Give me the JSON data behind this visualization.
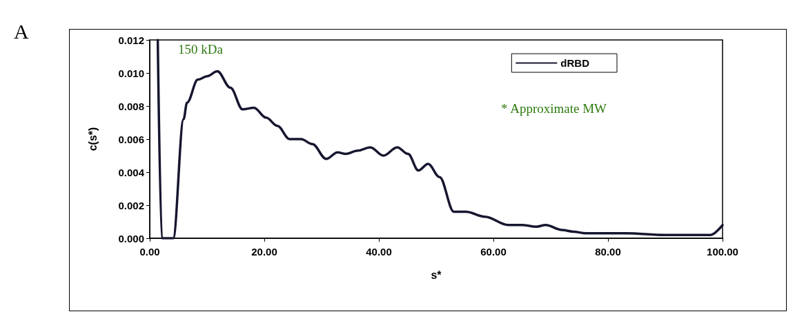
{
  "chart_data": {
    "type": "line",
    "xlabel": "s*",
    "ylabel": "c(s*)",
    "annotations": [
      "A",
      "150 kDa",
      "* Approximate MW"
    ],
    "series": [
      {
        "name": "dRBD",
        "color": "#161630",
        "x": [
          1.4,
          2.1,
          4.1,
          5.9,
          6.5,
          8.4,
          10.0,
          11.8,
          14.1,
          16.2,
          18.2,
          20.3,
          22.3,
          24.4,
          26.4,
          28.4,
          30.8,
          32.8,
          34.2,
          36.3,
          38.5,
          40.8,
          43.2,
          45.1,
          46.9,
          48.6,
          50.6,
          53.1,
          55.2,
          58.5,
          62.6,
          65.0,
          67.5,
          69.1,
          72.0,
          74.0,
          76.1,
          83.1,
          90.0,
          97.9,
          100
        ],
        "values": [
          0.012,
          0,
          0,
          0.0072,
          0.0082,
          0.0096,
          0.0098,
          0.0101,
          0.0091,
          0.0078,
          0.0079,
          0.0073,
          0.0068,
          0.006,
          0.006,
          0.0057,
          0.0048,
          0.0052,
          0.0051,
          0.0053,
          0.0055,
          0.005,
          0.0055,
          0.0051,
          0.0041,
          0.0045,
          0.0037,
          0.0016,
          0.0016,
          0.0013,
          0.0008,
          0.0008,
          0.0007,
          0.0008,
          0.0005,
          0.0004,
          0.0003,
          0.0003,
          0.0002,
          0.0002,
          0.0008
        ]
      }
    ],
    "xlim": [
      0,
      100
    ],
    "xticks": [
      {
        "value": 0,
        "label": "0.00"
      },
      {
        "value": 20,
        "label": "20.00"
      },
      {
        "value": 40,
        "label": "40.00"
      },
      {
        "value": 60,
        "label": "60.00"
      },
      {
        "value": 80,
        "label": "80.00"
      },
      {
        "value": 100,
        "label": "100.00"
      }
    ],
    "ylim": [
      0,
      0.012
    ],
    "yticks": [
      {
        "value": 0,
        "label": "0.000"
      },
      {
        "value": 0.002,
        "label": "0.002"
      },
      {
        "value": 0.004,
        "label": "0.004"
      },
      {
        "value": 0.006,
        "label": "0.006"
      },
      {
        "value": 0.008,
        "label": "0.008"
      },
      {
        "value": 0.01,
        "label": "0.010"
      },
      {
        "value": 0.012,
        "label": "0.012"
      }
    ],
    "grid": false,
    "legend": "top right",
    "marker": "none",
    "line_style": "solid"
  }
}
